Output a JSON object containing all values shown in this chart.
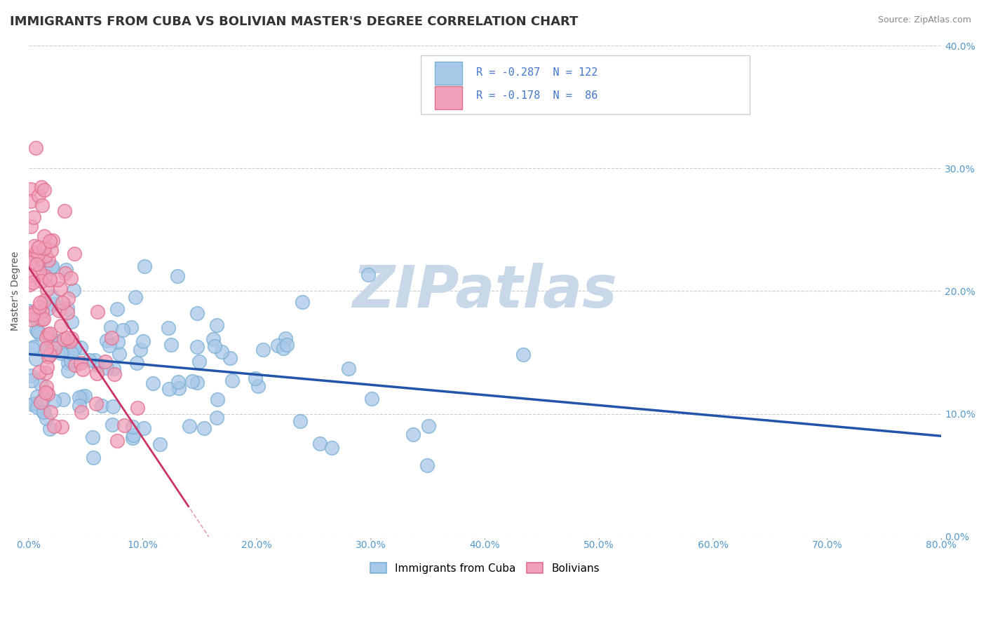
{
  "title": "IMMIGRANTS FROM CUBA VS BOLIVIAN MASTER'S DEGREE CORRELATION CHART",
  "source_text": "Source: ZipAtlas.com",
  "ylabel": "Master's Degree",
  "watermark": "ZIPatlas",
  "xlim": [
    0.0,
    0.8
  ],
  "ylim": [
    0.0,
    0.4
  ],
  "xticks": [
    0.0,
    0.1,
    0.2,
    0.3,
    0.4,
    0.5,
    0.6,
    0.7,
    0.8
  ],
  "yticks": [
    0.0,
    0.1,
    0.2,
    0.3,
    0.4
  ],
  "legend_label1": "Immigrants from Cuba",
  "legend_label2": "Bolivians",
  "series1_color": "#a8c8e8",
  "series2_color": "#f0a0b8",
  "series1_edge": "#7aafd4",
  "series2_edge": "#e07090",
  "line1_color": "#2255aa",
  "line2_color": "#cc3366",
  "line2_dash_color": "#e8a0b8",
  "R1": -0.287,
  "N1": 122,
  "R2": -0.178,
  "N2": 86,
  "background_color": "#ffffff",
  "grid_color": "#cccccc",
  "title_color": "#333333",
  "title_fontsize": 13,
  "axis_label_fontsize": 10,
  "tick_fontsize": 10,
  "tick_color": "#5599cc",
  "source_fontsize": 9,
  "watermark_color": "#c8d8e8",
  "legend_text_color": "#4477cc",
  "seed1": 42,
  "seed2": 7
}
